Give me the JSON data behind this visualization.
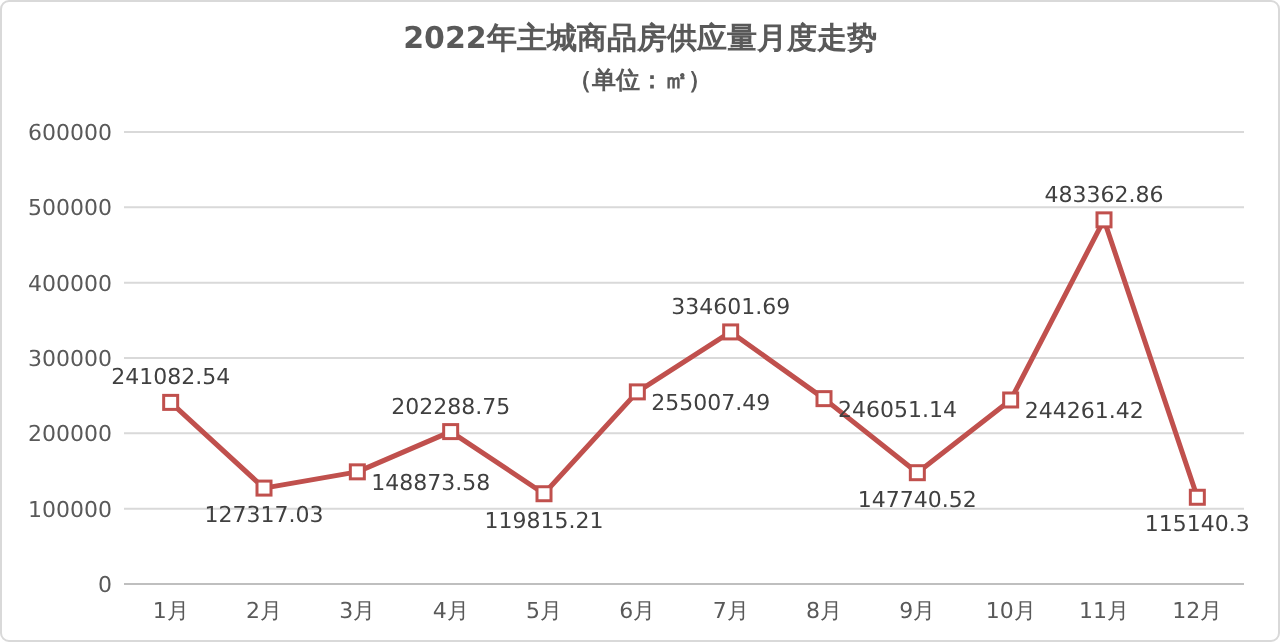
{
  "chart_data": {
    "type": "line",
    "title": "2022年主城商品房供应量月度走势",
    "subtitle": "（单位：㎡）",
    "categories": [
      "1月",
      "2月",
      "3月",
      "4月",
      "5月",
      "6月",
      "7月",
      "8月",
      "9月",
      "10月",
      "11月",
      "12月"
    ],
    "series": [
      {
        "color": "#c0504d",
        "values": [
          241082.54,
          127317.03,
          148873.58,
          202288.75,
          119815.21,
          255007.49,
          334601.69,
          246051.14,
          147740.52,
          244261.42,
          483362.86,
          115140.3
        ]
      }
    ],
    "ylim": [
      0,
      600000
    ],
    "yticks": [
      0,
      100000,
      200000,
      300000,
      400000,
      500000,
      600000
    ],
    "grid": "y",
    "marker": "square",
    "line_style": "solid",
    "data_labels": true
  }
}
